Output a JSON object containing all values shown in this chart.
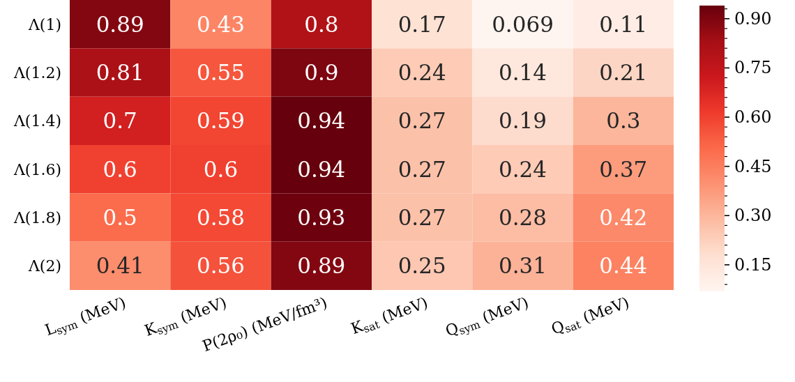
{
  "chart_data": {
    "type": "heatmap",
    "categories": [
      "L$_{sym}$ (MeV)",
      "K$_{sym}$ (MeV)",
      "P(2ρ₀) (MeV/fm³)",
      "K$_{sat}$ (MeV)",
      "Q$_{sym}$ (MeV)",
      "Q$_{sat}$ (MeV)"
    ],
    "y_categories": [
      "Λ(1)",
      "Λ(1.2)",
      "Λ(1.4)",
      "Λ(1.6)",
      "Λ(1.8)",
      "Λ(2)"
    ],
    "cells": [
      [
        0.89,
        0.43,
        0.8,
        0.17,
        0.069,
        0.11
      ],
      [
        0.81,
        0.55,
        0.9,
        0.24,
        0.14,
        0.21
      ],
      [
        0.7,
        0.59,
        0.94,
        0.27,
        0.19,
        0.3
      ],
      [
        0.6,
        0.6,
        0.94,
        0.27,
        0.24,
        0.37
      ],
      [
        0.5,
        0.58,
        0.93,
        0.27,
        0.28,
        0.42
      ],
      [
        0.41,
        0.56,
        0.89,
        0.25,
        0.31,
        0.44
      ]
    ],
    "data_labels": true,
    "clim": [
      0.069,
      0.94
    ],
    "cticks": [
      {
        "value": 0.09,
        "label": null
      },
      {
        "value": 0.12,
        "label": null
      },
      {
        "value": 0.15,
        "label": "0.15"
      },
      {
        "value": 0.18,
        "label": null
      },
      {
        "value": 0.21,
        "label": null
      },
      {
        "value": 0.24,
        "label": null
      },
      {
        "value": 0.27,
        "label": null
      },
      {
        "value": 0.3,
        "label": "0.30"
      },
      {
        "value": 0.33,
        "label": null
      },
      {
        "value": 0.36,
        "label": null
      },
      {
        "value": 0.39,
        "label": null
      },
      {
        "value": 0.42,
        "label": null
      },
      {
        "value": 0.45,
        "label": "0.45"
      },
      {
        "value": 0.48,
        "label": null
      },
      {
        "value": 0.51,
        "label": null
      },
      {
        "value": 0.54,
        "label": null
      },
      {
        "value": 0.57,
        "label": null
      },
      {
        "value": 0.6,
        "label": "0.60"
      },
      {
        "value": 0.63,
        "label": null
      },
      {
        "value": 0.66,
        "label": null
      },
      {
        "value": 0.69,
        "label": null
      },
      {
        "value": 0.72,
        "label": null
      },
      {
        "value": 0.75,
        "label": "0.75"
      },
      {
        "value": 0.78,
        "label": null
      },
      {
        "value": 0.81,
        "label": null
      },
      {
        "value": 0.84,
        "label": null
      },
      {
        "value": 0.87,
        "label": null
      },
      {
        "value": 0.9,
        "label": "0.90"
      },
      {
        "value": 0.93,
        "label": null
      }
    ]
  }
}
